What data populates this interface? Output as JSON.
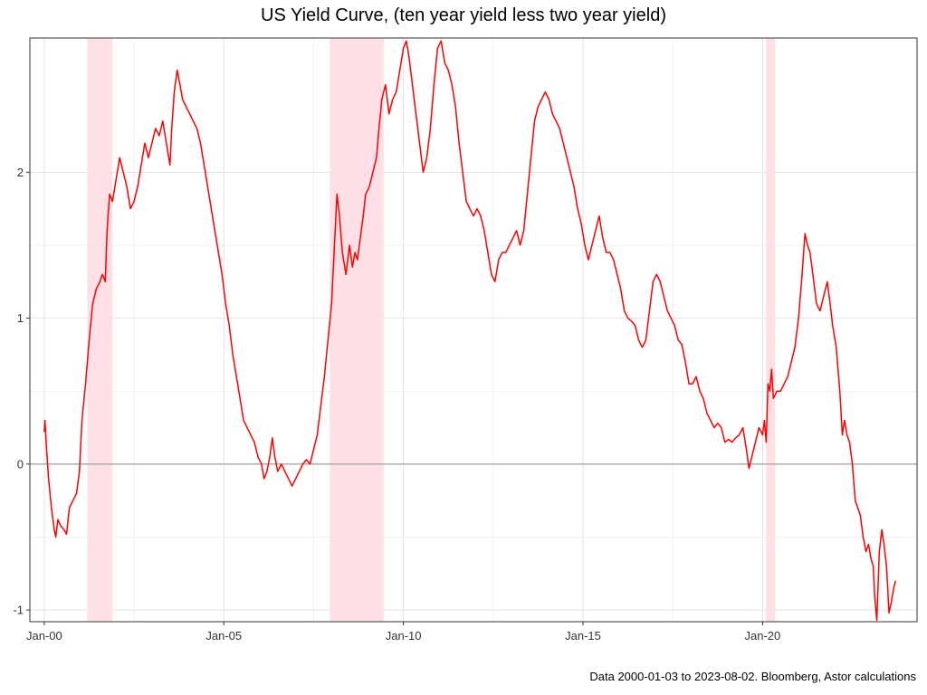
{
  "chart_data": {
    "type": "line",
    "title": "US Yield Curve, (ten year yield less two year yield)",
    "caption": "Data 2000-01-03 to 2023-08-02.  Bloomberg, Astor calculations",
    "xlabel": "",
    "ylabel": "",
    "x_ticks": [
      "Jan-00",
      "Jan-05",
      "Jan-10",
      "Jan-15",
      "Jan-20"
    ],
    "x_tick_years": [
      2000,
      2005,
      2010,
      2015,
      2020
    ],
    "xlim": [
      1999.6,
      2024.3
    ],
    "y_ticks": [
      "-1",
      "0",
      "1",
      "2"
    ],
    "y_tick_values": [
      -1,
      0,
      1,
      2
    ],
    "ylim": [
      -1.08,
      2.92
    ],
    "grid": true,
    "zero_line": true,
    "line_color": "#ff0000",
    "recession_color": "#ffdde3",
    "recession_shading": [
      {
        "start": 2001.2,
        "end": 2001.9
      },
      {
        "start": 2007.95,
        "end": 2009.45
      },
      {
        "start": 2020.1,
        "end": 2020.35
      }
    ],
    "series": [
      {
        "points": [
          [
            2000.0,
            0.22
          ],
          [
            2000.02,
            0.3
          ],
          [
            2000.06,
            0.12
          ],
          [
            2000.12,
            -0.1
          ],
          [
            2000.2,
            -0.3
          ],
          [
            2000.28,
            -0.45
          ],
          [
            2000.32,
            -0.5
          ],
          [
            2000.38,
            -0.38
          ],
          [
            2000.45,
            -0.42
          ],
          [
            2000.55,
            -0.45
          ],
          [
            2000.62,
            -0.48
          ],
          [
            2000.7,
            -0.3
          ],
          [
            2000.8,
            -0.25
          ],
          [
            2000.9,
            -0.2
          ],
          [
            2000.98,
            -0.05
          ],
          [
            2001.05,
            0.3
          ],
          [
            2001.15,
            0.55
          ],
          [
            2001.25,
            0.85
          ],
          [
            2001.35,
            1.1
          ],
          [
            2001.45,
            1.2
          ],
          [
            2001.55,
            1.25
          ],
          [
            2001.62,
            1.3
          ],
          [
            2001.7,
            1.25
          ],
          [
            2001.75,
            1.6
          ],
          [
            2001.82,
            1.85
          ],
          [
            2001.9,
            1.8
          ],
          [
            2002.0,
            1.95
          ],
          [
            2002.1,
            2.1
          ],
          [
            2002.2,
            2.0
          ],
          [
            2002.3,
            1.9
          ],
          [
            2002.4,
            1.75
          ],
          [
            2002.5,
            1.8
          ],
          [
            2002.6,
            1.9
          ],
          [
            2002.7,
            2.05
          ],
          [
            2002.8,
            2.2
          ],
          [
            2002.9,
            2.1
          ],
          [
            2003.0,
            2.2
          ],
          [
            2003.1,
            2.3
          ],
          [
            2003.2,
            2.25
          ],
          [
            2003.3,
            2.35
          ],
          [
            2003.4,
            2.2
          ],
          [
            2003.5,
            2.05
          ],
          [
            2003.55,
            2.3
          ],
          [
            2003.62,
            2.55
          ],
          [
            2003.7,
            2.7
          ],
          [
            2003.78,
            2.6
          ],
          [
            2003.85,
            2.5
          ],
          [
            2003.95,
            2.45
          ],
          [
            2004.05,
            2.4
          ],
          [
            2004.15,
            2.35
          ],
          [
            2004.25,
            2.3
          ],
          [
            2004.35,
            2.2
          ],
          [
            2004.45,
            2.05
          ],
          [
            2004.55,
            1.9
          ],
          [
            2004.65,
            1.75
          ],
          [
            2004.75,
            1.6
          ],
          [
            2004.85,
            1.45
          ],
          [
            2004.95,
            1.3
          ],
          [
            2005.05,
            1.1
          ],
          [
            2005.15,
            0.95
          ],
          [
            2005.25,
            0.75
          ],
          [
            2005.35,
            0.6
          ],
          [
            2005.45,
            0.45
          ],
          [
            2005.55,
            0.3
          ],
          [
            2005.65,
            0.25
          ],
          [
            2005.75,
            0.2
          ],
          [
            2005.85,
            0.15
          ],
          [
            2005.95,
            0.05
          ],
          [
            2006.05,
            0.0
          ],
          [
            2006.12,
            -0.1
          ],
          [
            2006.2,
            -0.05
          ],
          [
            2006.28,
            0.05
          ],
          [
            2006.35,
            0.18
          ],
          [
            2006.42,
            0.05
          ],
          [
            2006.5,
            -0.05
          ],
          [
            2006.6,
            0.0
          ],
          [
            2006.7,
            -0.05
          ],
          [
            2006.8,
            -0.1
          ],
          [
            2006.9,
            -0.15
          ],
          [
            2007.0,
            -0.1
          ],
          [
            2007.1,
            -0.05
          ],
          [
            2007.2,
            0.0
          ],
          [
            2007.3,
            0.03
          ],
          [
            2007.4,
            0.0
          ],
          [
            2007.5,
            0.1
          ],
          [
            2007.6,
            0.2
          ],
          [
            2007.7,
            0.4
          ],
          [
            2007.8,
            0.6
          ],
          [
            2007.9,
            0.85
          ],
          [
            2008.0,
            1.1
          ],
          [
            2008.08,
            1.5
          ],
          [
            2008.15,
            1.85
          ],
          [
            2008.22,
            1.7
          ],
          [
            2008.3,
            1.45
          ],
          [
            2008.4,
            1.3
          ],
          [
            2008.5,
            1.5
          ],
          [
            2008.58,
            1.35
          ],
          [
            2008.65,
            1.45
          ],
          [
            2008.72,
            1.4
          ],
          [
            2008.8,
            1.55
          ],
          [
            2008.88,
            1.7
          ],
          [
            2008.95,
            1.85
          ],
          [
            2009.05,
            1.9
          ],
          [
            2009.15,
            2.0
          ],
          [
            2009.25,
            2.1
          ],
          [
            2009.32,
            2.3
          ],
          [
            2009.4,
            2.5
          ],
          [
            2009.5,
            2.6
          ],
          [
            2009.6,
            2.4
          ],
          [
            2009.7,
            2.5
          ],
          [
            2009.8,
            2.55
          ],
          [
            2009.9,
            2.7
          ],
          [
            2010.0,
            2.85
          ],
          [
            2010.08,
            2.9
          ],
          [
            2010.15,
            2.8
          ],
          [
            2010.25,
            2.6
          ],
          [
            2010.35,
            2.4
          ],
          [
            2010.45,
            2.2
          ],
          [
            2010.55,
            2.0
          ],
          [
            2010.65,
            2.1
          ],
          [
            2010.75,
            2.3
          ],
          [
            2010.85,
            2.6
          ],
          [
            2010.95,
            2.85
          ],
          [
            2011.05,
            2.9
          ],
          [
            2011.15,
            2.75
          ],
          [
            2011.25,
            2.7
          ],
          [
            2011.35,
            2.6
          ],
          [
            2011.45,
            2.45
          ],
          [
            2011.55,
            2.2
          ],
          [
            2011.65,
            2.0
          ],
          [
            2011.75,
            1.8
          ],
          [
            2011.85,
            1.75
          ],
          [
            2011.95,
            1.7
          ],
          [
            2012.05,
            1.75
          ],
          [
            2012.15,
            1.7
          ],
          [
            2012.25,
            1.6
          ],
          [
            2012.35,
            1.45
          ],
          [
            2012.45,
            1.3
          ],
          [
            2012.55,
            1.25
          ],
          [
            2012.65,
            1.4
          ],
          [
            2012.75,
            1.45
          ],
          [
            2012.85,
            1.45
          ],
          [
            2012.95,
            1.5
          ],
          [
            2013.05,
            1.55
          ],
          [
            2013.15,
            1.6
          ],
          [
            2013.25,
            1.5
          ],
          [
            2013.35,
            1.6
          ],
          [
            2013.45,
            1.85
          ],
          [
            2013.55,
            2.1
          ],
          [
            2013.65,
            2.35
          ],
          [
            2013.75,
            2.45
          ],
          [
            2013.85,
            2.5
          ],
          [
            2013.95,
            2.55
          ],
          [
            2014.05,
            2.5
          ],
          [
            2014.15,
            2.4
          ],
          [
            2014.25,
            2.35
          ],
          [
            2014.35,
            2.3
          ],
          [
            2014.45,
            2.2
          ],
          [
            2014.55,
            2.1
          ],
          [
            2014.65,
            2.0
          ],
          [
            2014.75,
            1.9
          ],
          [
            2014.85,
            1.75
          ],
          [
            2014.95,
            1.65
          ],
          [
            2015.05,
            1.5
          ],
          [
            2015.15,
            1.4
          ],
          [
            2015.25,
            1.5
          ],
          [
            2015.35,
            1.6
          ],
          [
            2015.45,
            1.7
          ],
          [
            2015.55,
            1.55
          ],
          [
            2015.65,
            1.45
          ],
          [
            2015.75,
            1.45
          ],
          [
            2015.85,
            1.4
          ],
          [
            2015.95,
            1.3
          ],
          [
            2016.05,
            1.2
          ],
          [
            2016.15,
            1.05
          ],
          [
            2016.25,
            1.0
          ],
          [
            2016.35,
            0.98
          ],
          [
            2016.45,
            0.95
          ],
          [
            2016.55,
            0.85
          ],
          [
            2016.65,
            0.8
          ],
          [
            2016.75,
            0.85
          ],
          [
            2016.85,
            1.05
          ],
          [
            2016.95,
            1.25
          ],
          [
            2017.05,
            1.3
          ],
          [
            2017.15,
            1.25
          ],
          [
            2017.25,
            1.15
          ],
          [
            2017.35,
            1.05
          ],
          [
            2017.45,
            1.0
          ],
          [
            2017.55,
            0.95
          ],
          [
            2017.65,
            0.85
          ],
          [
            2017.75,
            0.82
          ],
          [
            2017.85,
            0.7
          ],
          [
            2017.95,
            0.55
          ],
          [
            2018.05,
            0.55
          ],
          [
            2018.15,
            0.6
          ],
          [
            2018.25,
            0.5
          ],
          [
            2018.35,
            0.45
          ],
          [
            2018.45,
            0.35
          ],
          [
            2018.55,
            0.3
          ],
          [
            2018.65,
            0.25
          ],
          [
            2018.75,
            0.28
          ],
          [
            2018.85,
            0.25
          ],
          [
            2018.95,
            0.15
          ],
          [
            2019.05,
            0.17
          ],
          [
            2019.15,
            0.15
          ],
          [
            2019.25,
            0.18
          ],
          [
            2019.35,
            0.2
          ],
          [
            2019.45,
            0.25
          ],
          [
            2019.55,
            0.1
          ],
          [
            2019.62,
            -0.03
          ],
          [
            2019.7,
            0.05
          ],
          [
            2019.8,
            0.15
          ],
          [
            2019.9,
            0.25
          ],
          [
            2020.0,
            0.2
          ],
          [
            2020.05,
            0.3
          ],
          [
            2020.1,
            0.15
          ],
          [
            2020.15,
            0.55
          ],
          [
            2020.2,
            0.5
          ],
          [
            2020.25,
            0.65
          ],
          [
            2020.3,
            0.45
          ],
          [
            2020.4,
            0.5
          ],
          [
            2020.5,
            0.5
          ],
          [
            2020.6,
            0.55
          ],
          [
            2020.7,
            0.6
          ],
          [
            2020.8,
            0.7
          ],
          [
            2020.9,
            0.8
          ],
          [
            2021.0,
            1.0
          ],
          [
            2021.1,
            1.3
          ],
          [
            2021.18,
            1.58
          ],
          [
            2021.25,
            1.5
          ],
          [
            2021.32,
            1.45
          ],
          [
            2021.4,
            1.3
          ],
          [
            2021.5,
            1.1
          ],
          [
            2021.6,
            1.05
          ],
          [
            2021.7,
            1.15
          ],
          [
            2021.8,
            1.25
          ],
          [
            2021.88,
            1.1
          ],
          [
            2021.95,
            0.95
          ],
          [
            2022.05,
            0.8
          ],
          [
            2022.15,
            0.5
          ],
          [
            2022.22,
            0.2
          ],
          [
            2022.28,
            0.3
          ],
          [
            2022.35,
            0.2
          ],
          [
            2022.42,
            0.15
          ],
          [
            2022.5,
            0.0
          ],
          [
            2022.58,
            -0.25
          ],
          [
            2022.65,
            -0.3
          ],
          [
            2022.72,
            -0.35
          ],
          [
            2022.8,
            -0.5
          ],
          [
            2022.88,
            -0.6
          ],
          [
            2022.95,
            -0.55
          ],
          [
            2023.02,
            -0.65
          ],
          [
            2023.08,
            -0.7
          ],
          [
            2023.12,
            -0.9
          ],
          [
            2023.18,
            -1.07
          ],
          [
            2023.25,
            -0.6
          ],
          [
            2023.32,
            -0.45
          ],
          [
            2023.38,
            -0.55
          ],
          [
            2023.45,
            -0.7
          ],
          [
            2023.52,
            -1.02
          ],
          [
            2023.58,
            -0.95
          ],
          [
            2023.65,
            -0.85
          ],
          [
            2023.7,
            -0.8
          ]
        ]
      }
    ]
  }
}
